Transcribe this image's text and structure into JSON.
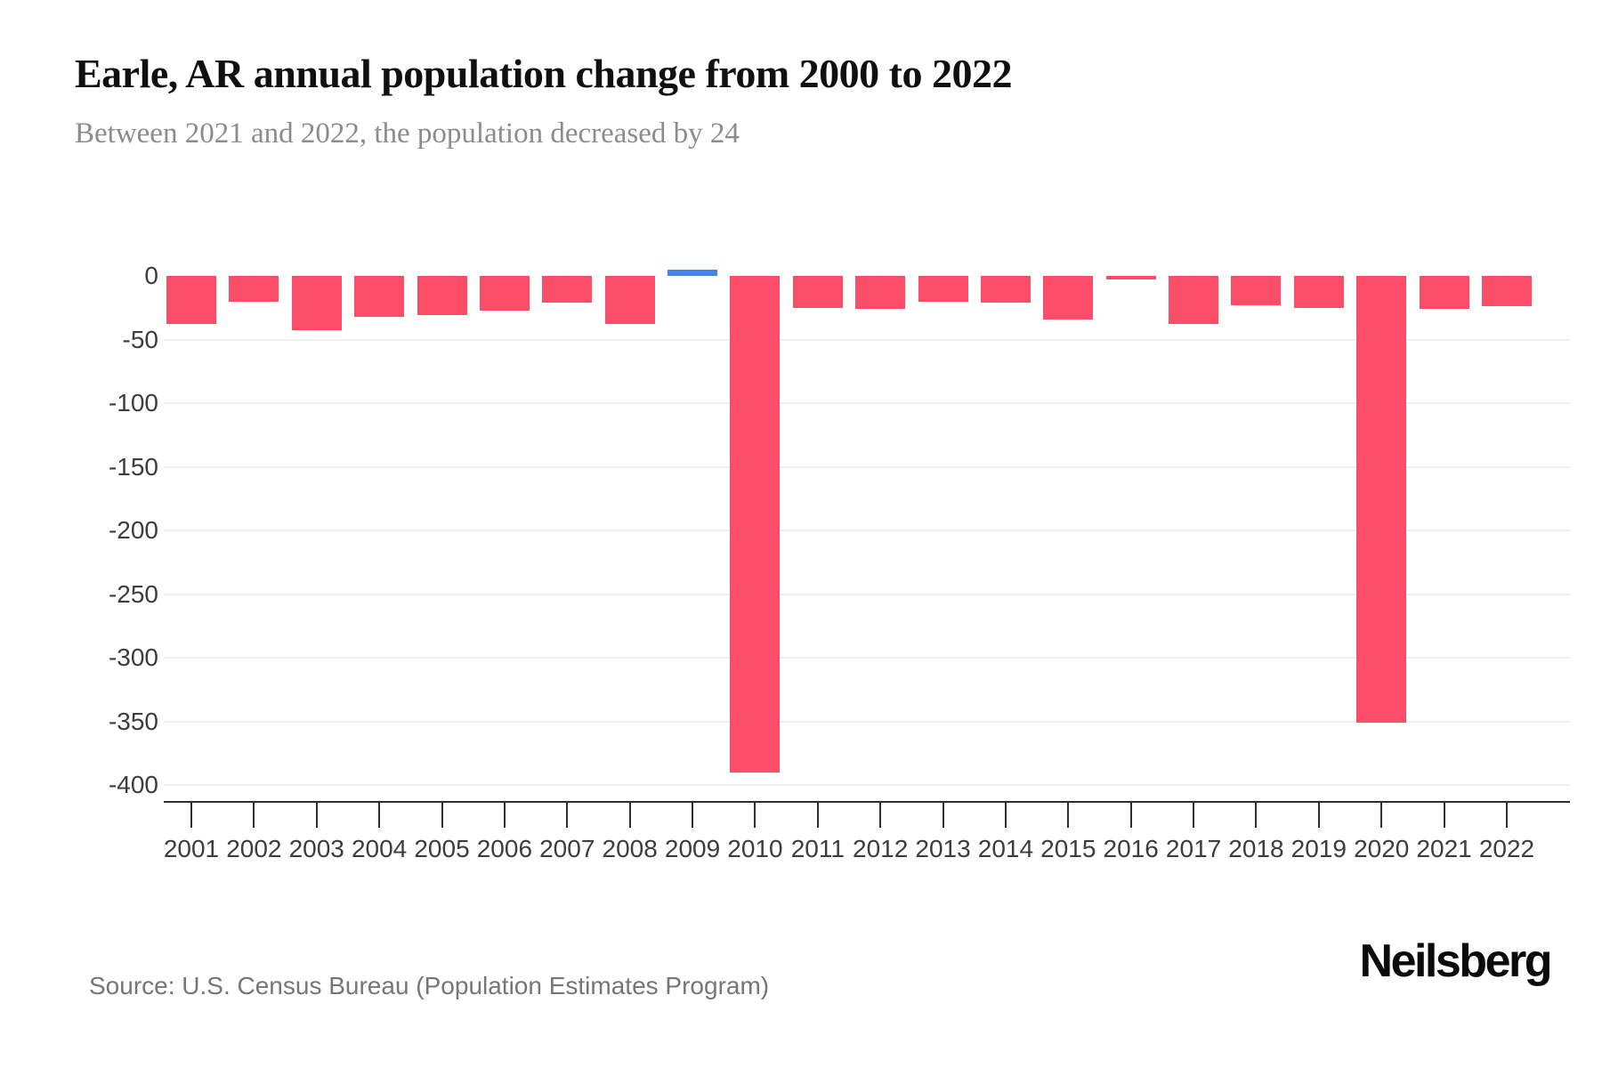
{
  "header": {
    "title": "Earle, AR annual population change from 2000 to 2022",
    "subtitle": "Between 2021 and 2022, the population decreased by 24"
  },
  "footer": {
    "source": "Source: U.S. Census Bureau (Population Estimates Program)",
    "brand": "Neilsberg"
  },
  "colors": {
    "bar_negative": "#fa4d67",
    "bar_positive": "#4284e8",
    "gridline": "#f1f1f1",
    "axis": "#2e2e2e",
    "tick_label": "#3d3d3d",
    "title": "#101010",
    "subtitle": "#8c8c8c",
    "source_text": "#767676"
  },
  "chart_data": {
    "type": "bar",
    "title": "Earle, AR annual population change from 2000 to 2022",
    "subtitle": "Between 2021 and 2022, the population decreased by 24",
    "categories": [
      "2001",
      "2002",
      "2003",
      "2004",
      "2005",
      "2006",
      "2007",
      "2008",
      "2009",
      "2010",
      "2011",
      "2012",
      "2013",
      "2014",
      "2015",
      "2016",
      "2017",
      "2018",
      "2019",
      "2020",
      "2021",
      "2022"
    ],
    "values": [
      -38,
      -20,
      -43,
      -32,
      -31,
      -27,
      -21,
      -38,
      5,
      -390,
      -25,
      -26,
      -20,
      -21,
      -34,
      -3,
      -38,
      -23,
      -25,
      -351,
      -26,
      -24
    ],
    "xlabel": "",
    "ylabel": "",
    "ylim": [
      -400,
      0
    ],
    "yticks": [
      0,
      -50,
      -100,
      -150,
      -200,
      -250,
      -300,
      -350,
      -400
    ],
    "grid": true,
    "legend": "none",
    "note": "negative bars pink, positive bars blue"
  }
}
